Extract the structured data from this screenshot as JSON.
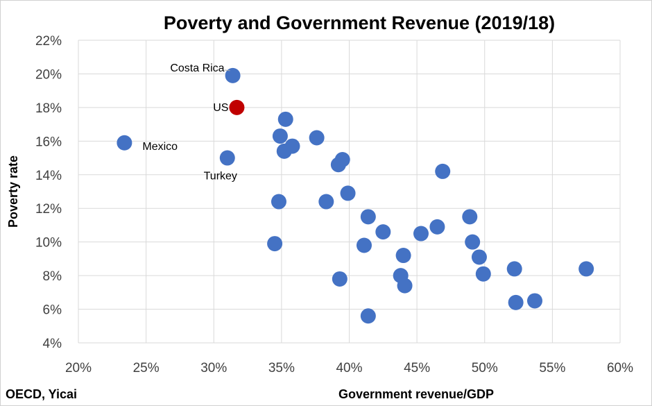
{
  "chart_data": {
    "type": "scatter",
    "title": "Poverty and Government Revenue (2019/18)",
    "xlabel": "Government revenue/GDP",
    "ylabel": "Poverty rate",
    "source": "OECD, Yicai",
    "xlim": [
      20,
      60
    ],
    "ylim": [
      4,
      22
    ],
    "x_ticks": [
      "20%",
      "25%",
      "30%",
      "35%",
      "40%",
      "45%",
      "50%",
      "55%",
      "60%"
    ],
    "y_ticks": [
      "4%",
      "6%",
      "8%",
      "10%",
      "12%",
      "14%",
      "16%",
      "18%",
      "20%",
      "22%"
    ],
    "grid": "vertical and horizontal",
    "colors": {
      "default": "#4472C4",
      "highlight": "#C00000"
    },
    "points": [
      {
        "x": 31.4,
        "y": 19.9,
        "label": "Costa Rica"
      },
      {
        "x": 31.7,
        "y": 18.0,
        "label": "US",
        "highlight": true
      },
      {
        "x": 23.4,
        "y": 15.9,
        "label": "Mexico"
      },
      {
        "x": 31.0,
        "y": 15.0,
        "label": "Turkey"
      },
      {
        "x": 35.3,
        "y": 17.3
      },
      {
        "x": 34.9,
        "y": 16.3
      },
      {
        "x": 35.8,
        "y": 15.7
      },
      {
        "x": 35.2,
        "y": 15.4
      },
      {
        "x": 37.6,
        "y": 16.2
      },
      {
        "x": 39.5,
        "y": 14.9
      },
      {
        "x": 39.2,
        "y": 14.6
      },
      {
        "x": 46.9,
        "y": 14.2
      },
      {
        "x": 34.8,
        "y": 12.4
      },
      {
        "x": 38.3,
        "y": 12.4
      },
      {
        "x": 39.9,
        "y": 12.9
      },
      {
        "x": 41.4,
        "y": 11.5
      },
      {
        "x": 34.5,
        "y": 9.9
      },
      {
        "x": 42.5,
        "y": 10.6
      },
      {
        "x": 41.1,
        "y": 9.8
      },
      {
        "x": 45.3,
        "y": 10.5
      },
      {
        "x": 46.5,
        "y": 10.9
      },
      {
        "x": 48.9,
        "y": 11.5
      },
      {
        "x": 49.1,
        "y": 10.0
      },
      {
        "x": 49.6,
        "y": 9.1
      },
      {
        "x": 49.9,
        "y": 8.1
      },
      {
        "x": 44.0,
        "y": 9.2
      },
      {
        "x": 43.8,
        "y": 8.0
      },
      {
        "x": 44.1,
        "y": 7.4
      },
      {
        "x": 39.3,
        "y": 7.8
      },
      {
        "x": 41.4,
        "y": 5.6
      },
      {
        "x": 52.2,
        "y": 8.4
      },
      {
        "x": 52.3,
        "y": 6.4
      },
      {
        "x": 53.7,
        "y": 6.5
      },
      {
        "x": 57.5,
        "y": 8.4
      }
    ]
  }
}
